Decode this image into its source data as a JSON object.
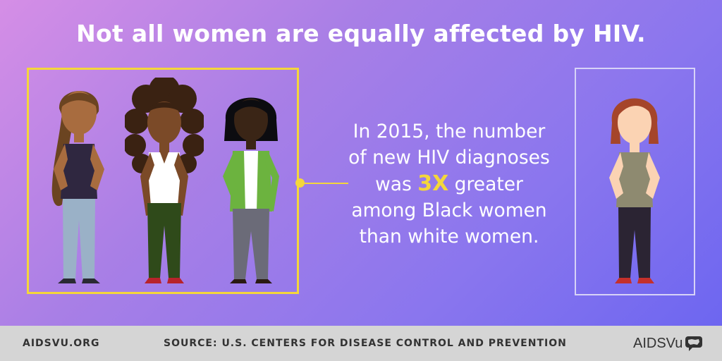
{
  "headline": "Not all women are equally affected by HIV.",
  "statement": {
    "line1": "In 2015, the number",
    "line2": "of new HIV diagnoses",
    "line3_before": "was ",
    "line3_highlight": "3X",
    "line3_after": " greater",
    "line4": "among Black women",
    "line5": "than white women."
  },
  "footer": {
    "url": "AIDSVU.ORG",
    "source": "SOURCE: U.S. CENTERS FOR DISEASE CONTROL AND PREVENTION",
    "logo": "AIDSVu"
  },
  "colors": {
    "accent_yellow": "#f4d63b",
    "box_right_border": "#d7d3f7",
    "footer_bg": "#d5d5d5"
  },
  "figures": [
    {
      "icon": "woman-long-ponytail-icon",
      "group": "black-women"
    },
    {
      "icon": "woman-curly-hair-icon",
      "group": "black-women"
    },
    {
      "icon": "woman-bob-hair-icon",
      "group": "black-women"
    },
    {
      "icon": "woman-red-hair-icon",
      "group": "white-women"
    }
  ]
}
